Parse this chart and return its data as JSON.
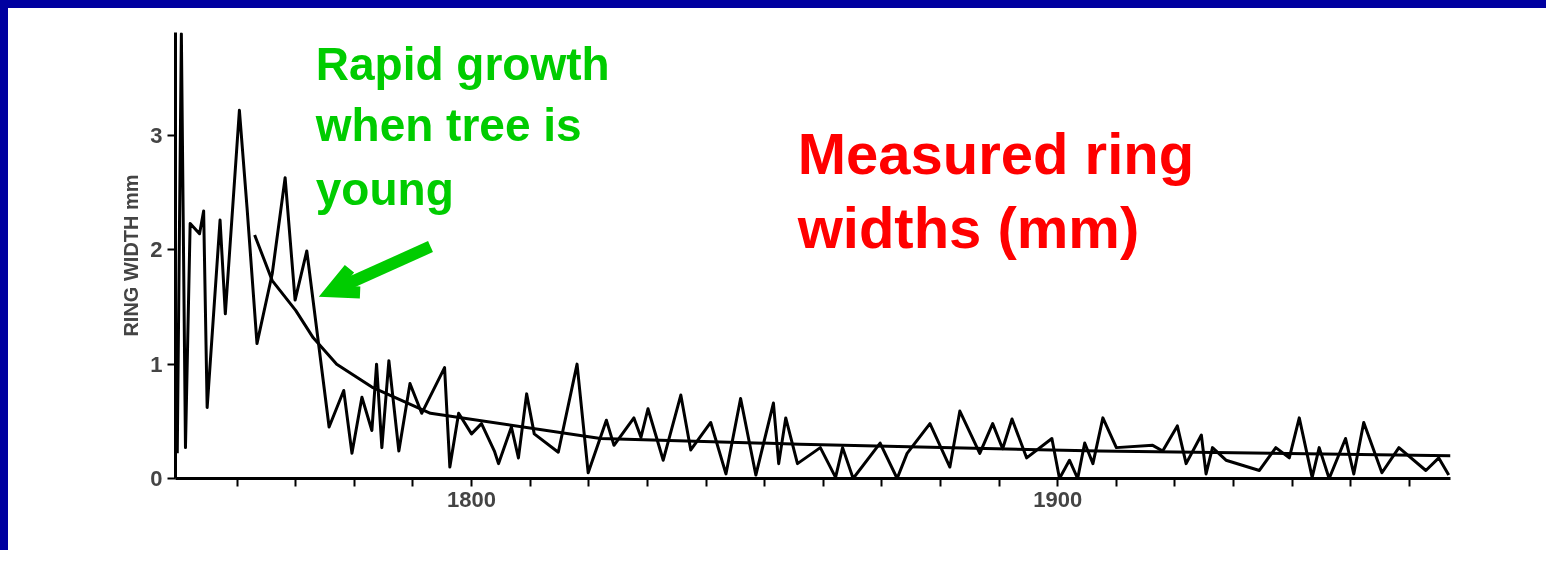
{
  "chart_data": {
    "type": "line",
    "ylabel": "RING WIDTH mm",
    "xlim": [
      1749.5,
      1967
    ],
    "ylim": [
      0,
      3.9
    ],
    "xticks": [
      {
        "value": 1760,
        "label": null
      },
      {
        "value": 1770,
        "label": null
      },
      {
        "value": 1780,
        "label": null
      },
      {
        "value": 1790,
        "label": null
      },
      1800,
      {
        "value": 1810,
        "label": null
      },
      {
        "value": 1820,
        "label": null
      },
      {
        "value": 1830,
        "label": null
      },
      {
        "value": 1840,
        "label": null
      },
      {
        "value": 1850,
        "label": null
      },
      {
        "value": 1860,
        "label": null
      },
      {
        "value": 1870,
        "label": null
      },
      {
        "value": 1880,
        "label": null
      },
      {
        "value": 1890,
        "label": null
      },
      1900,
      {
        "value": 1910,
        "label": null
      },
      {
        "value": 1920,
        "label": null
      },
      {
        "value": 1930,
        "label": null
      },
      {
        "value": 1940,
        "label": null
      },
      {
        "value": 1950,
        "label": null
      },
      {
        "value": 1960,
        "label": null
      }
    ],
    "yticks": [
      0,
      1,
      2,
      3
    ],
    "grid": false,
    "marker": "none",
    "line_style": "solid",
    "series": [
      {
        "color": "#000000",
        "x": [
          1749.8,
          1750.5,
          1751.2,
          1752.0,
          1753.6,
          1754.3,
          1754.9,
          1757.1,
          1758.0,
          1760.4,
          1761.7,
          1763.4,
          1766.0,
          1768.2,
          1769.9,
          1771.9,
          1775.7,
          1778.2,
          1779.6,
          1781.3,
          1783.0,
          1783.8,
          1784.7,
          1785.9,
          1787.6,
          1789.5,
          1791.5,
          1795.4,
          1796.3,
          1797.8,
          1800.0,
          1801.7,
          1803.9,
          1804.6,
          1806.8,
          1808.0,
          1809.4,
          1810.7,
          1814.8,
          1818.0,
          1819.9,
          1823.0,
          1824.3,
          1827.7,
          1828.9,
          1830.1,
          1832.7,
          1835.7,
          1837.4,
          1840.8,
          1843.4,
          1845.9,
          1848.5,
          1851.5,
          1852.4,
          1853.6,
          1855.6,
          1859.5,
          1862.1,
          1863.3,
          1865.1,
          1869.7,
          1872.6,
          1874.3,
          1878.2,
          1881.6,
          1883.3,
          1886.7,
          1888.9,
          1890.6,
          1892.2,
          1894.7,
          1899.0,
          1900.3,
          1902.0,
          1903.4,
          1904.6,
          1906.0,
          1907.7,
          1910.0,
          1916.2,
          1917.9,
          1920.4,
          1921.9,
          1924.5,
          1925.3,
          1926.4,
          1928.7,
          1934.4,
          1937.2,
          1939.5,
          1941.2,
          1943.4,
          1944.6,
          1946.3,
          1949.1,
          1950.5,
          1952.2,
          1955.3,
          1958.2,
          1962.8,
          1965.0,
          1966.7
        ],
        "values": [
          0.22,
          3.89,
          0.27,
          2.23,
          2.14,
          2.34,
          0.62,
          2.26,
          1.44,
          3.22,
          2.37,
          1.18,
          1.79,
          2.63,
          1.56,
          1.99,
          0.45,
          0.77,
          0.22,
          0.71,
          0.42,
          1.0,
          0.27,
          1.03,
          0.24,
          0.83,
          0.57,
          0.97,
          0.1,
          0.57,
          0.39,
          0.48,
          0.24,
          0.13,
          0.45,
          0.18,
          0.74,
          0.39,
          0.23,
          1.0,
          0.05,
          0.51,
          0.29,
          0.53,
          0.36,
          0.61,
          0.16,
          0.73,
          0.25,
          0.49,
          0.04,
          0.7,
          0.03,
          0.66,
          0.13,
          0.53,
          0.13,
          0.27,
          0.01,
          0.27,
          0.0,
          0.31,
          0.0,
          0.22,
          0.48,
          0.1,
          0.59,
          0.22,
          0.48,
          0.26,
          0.52,
          0.18,
          0.35,
          0.0,
          0.16,
          0.0,
          0.31,
          0.13,
          0.53,
          0.27,
          0.29,
          0.24,
          0.46,
          0.13,
          0.38,
          0.04,
          0.27,
          0.16,
          0.07,
          0.27,
          0.18,
          0.53,
          0.01,
          0.27,
          0.0,
          0.35,
          0.04,
          0.49,
          0.05,
          0.27,
          0.07,
          0.18,
          0.03
        ]
      },
      {
        "color": "#000000",
        "x": [
          1763,
          1766,
          1770,
          1773,
          1777,
          1783,
          1793,
          1822,
          1856,
          1907,
          1967
        ],
        "values": [
          2.13,
          1.73,
          1.47,
          1.23,
          1.0,
          0.8,
          0.57,
          0.35,
          0.3,
          0.24,
          0.2
        ]
      }
    ],
    "annotations": [
      "Rapid growth\nwhen tree is\nyoung",
      "Measured ring\nwidths (mm)"
    ]
  }
}
